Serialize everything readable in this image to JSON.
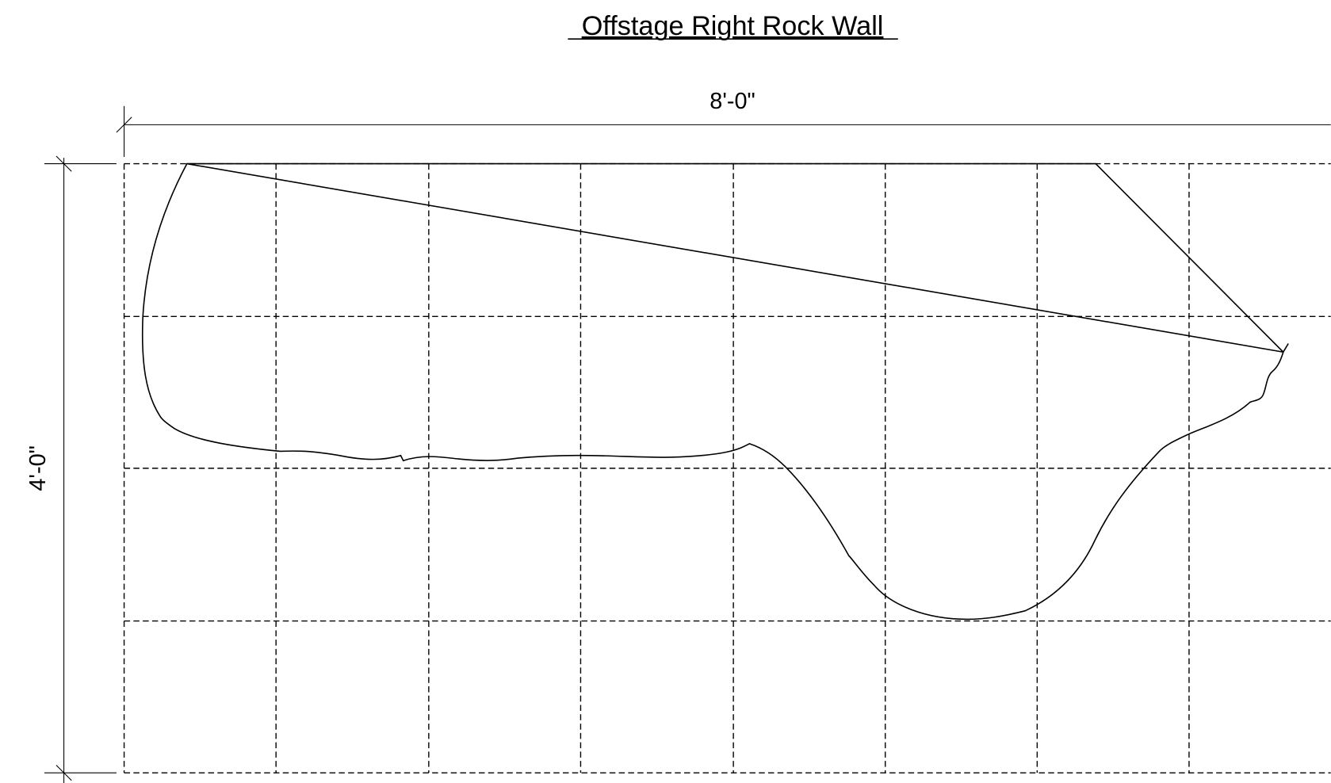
{
  "header": {
    "title": "Offstage Right Rock Wall"
  },
  "dimensions": {
    "width": "8'-0\"",
    "height": "4'-0\""
  }
}
